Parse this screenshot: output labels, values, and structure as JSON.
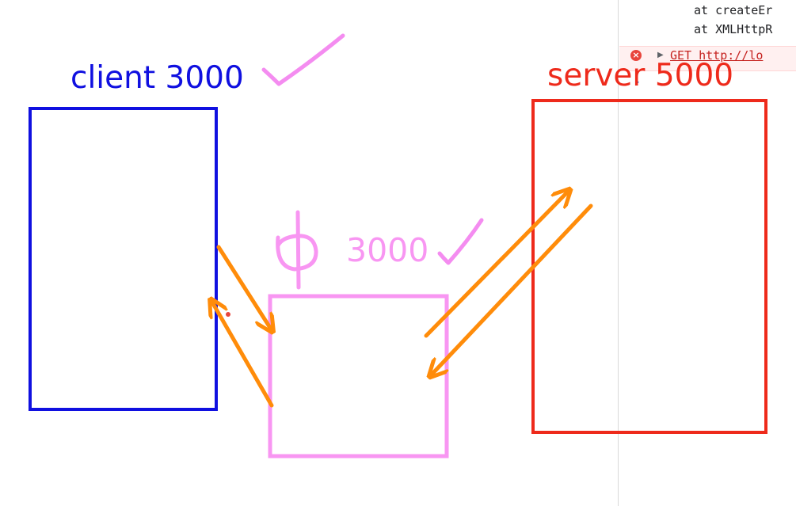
{
  "console": {
    "stack_lines": [
      "at createEr",
      "at XMLHttpR"
    ],
    "error_text": "GET http://lo",
    "error_icon": "error-circle-icon",
    "expand_icon": "expand-triangle-icon",
    "prompt_icon": "console-prompt-chevron-icon"
  },
  "diagram": {
    "client": {
      "label": "client 3000",
      "color": "#1010e0",
      "check_color": "#f48cf0"
    },
    "proxy": {
      "label_glyph": "中",
      "label": "3000",
      "color": "#f896f2"
    },
    "server": {
      "label": "server 5000",
      "color": "#ee2a1b"
    },
    "arrow_color": "#ff8c0a"
  }
}
